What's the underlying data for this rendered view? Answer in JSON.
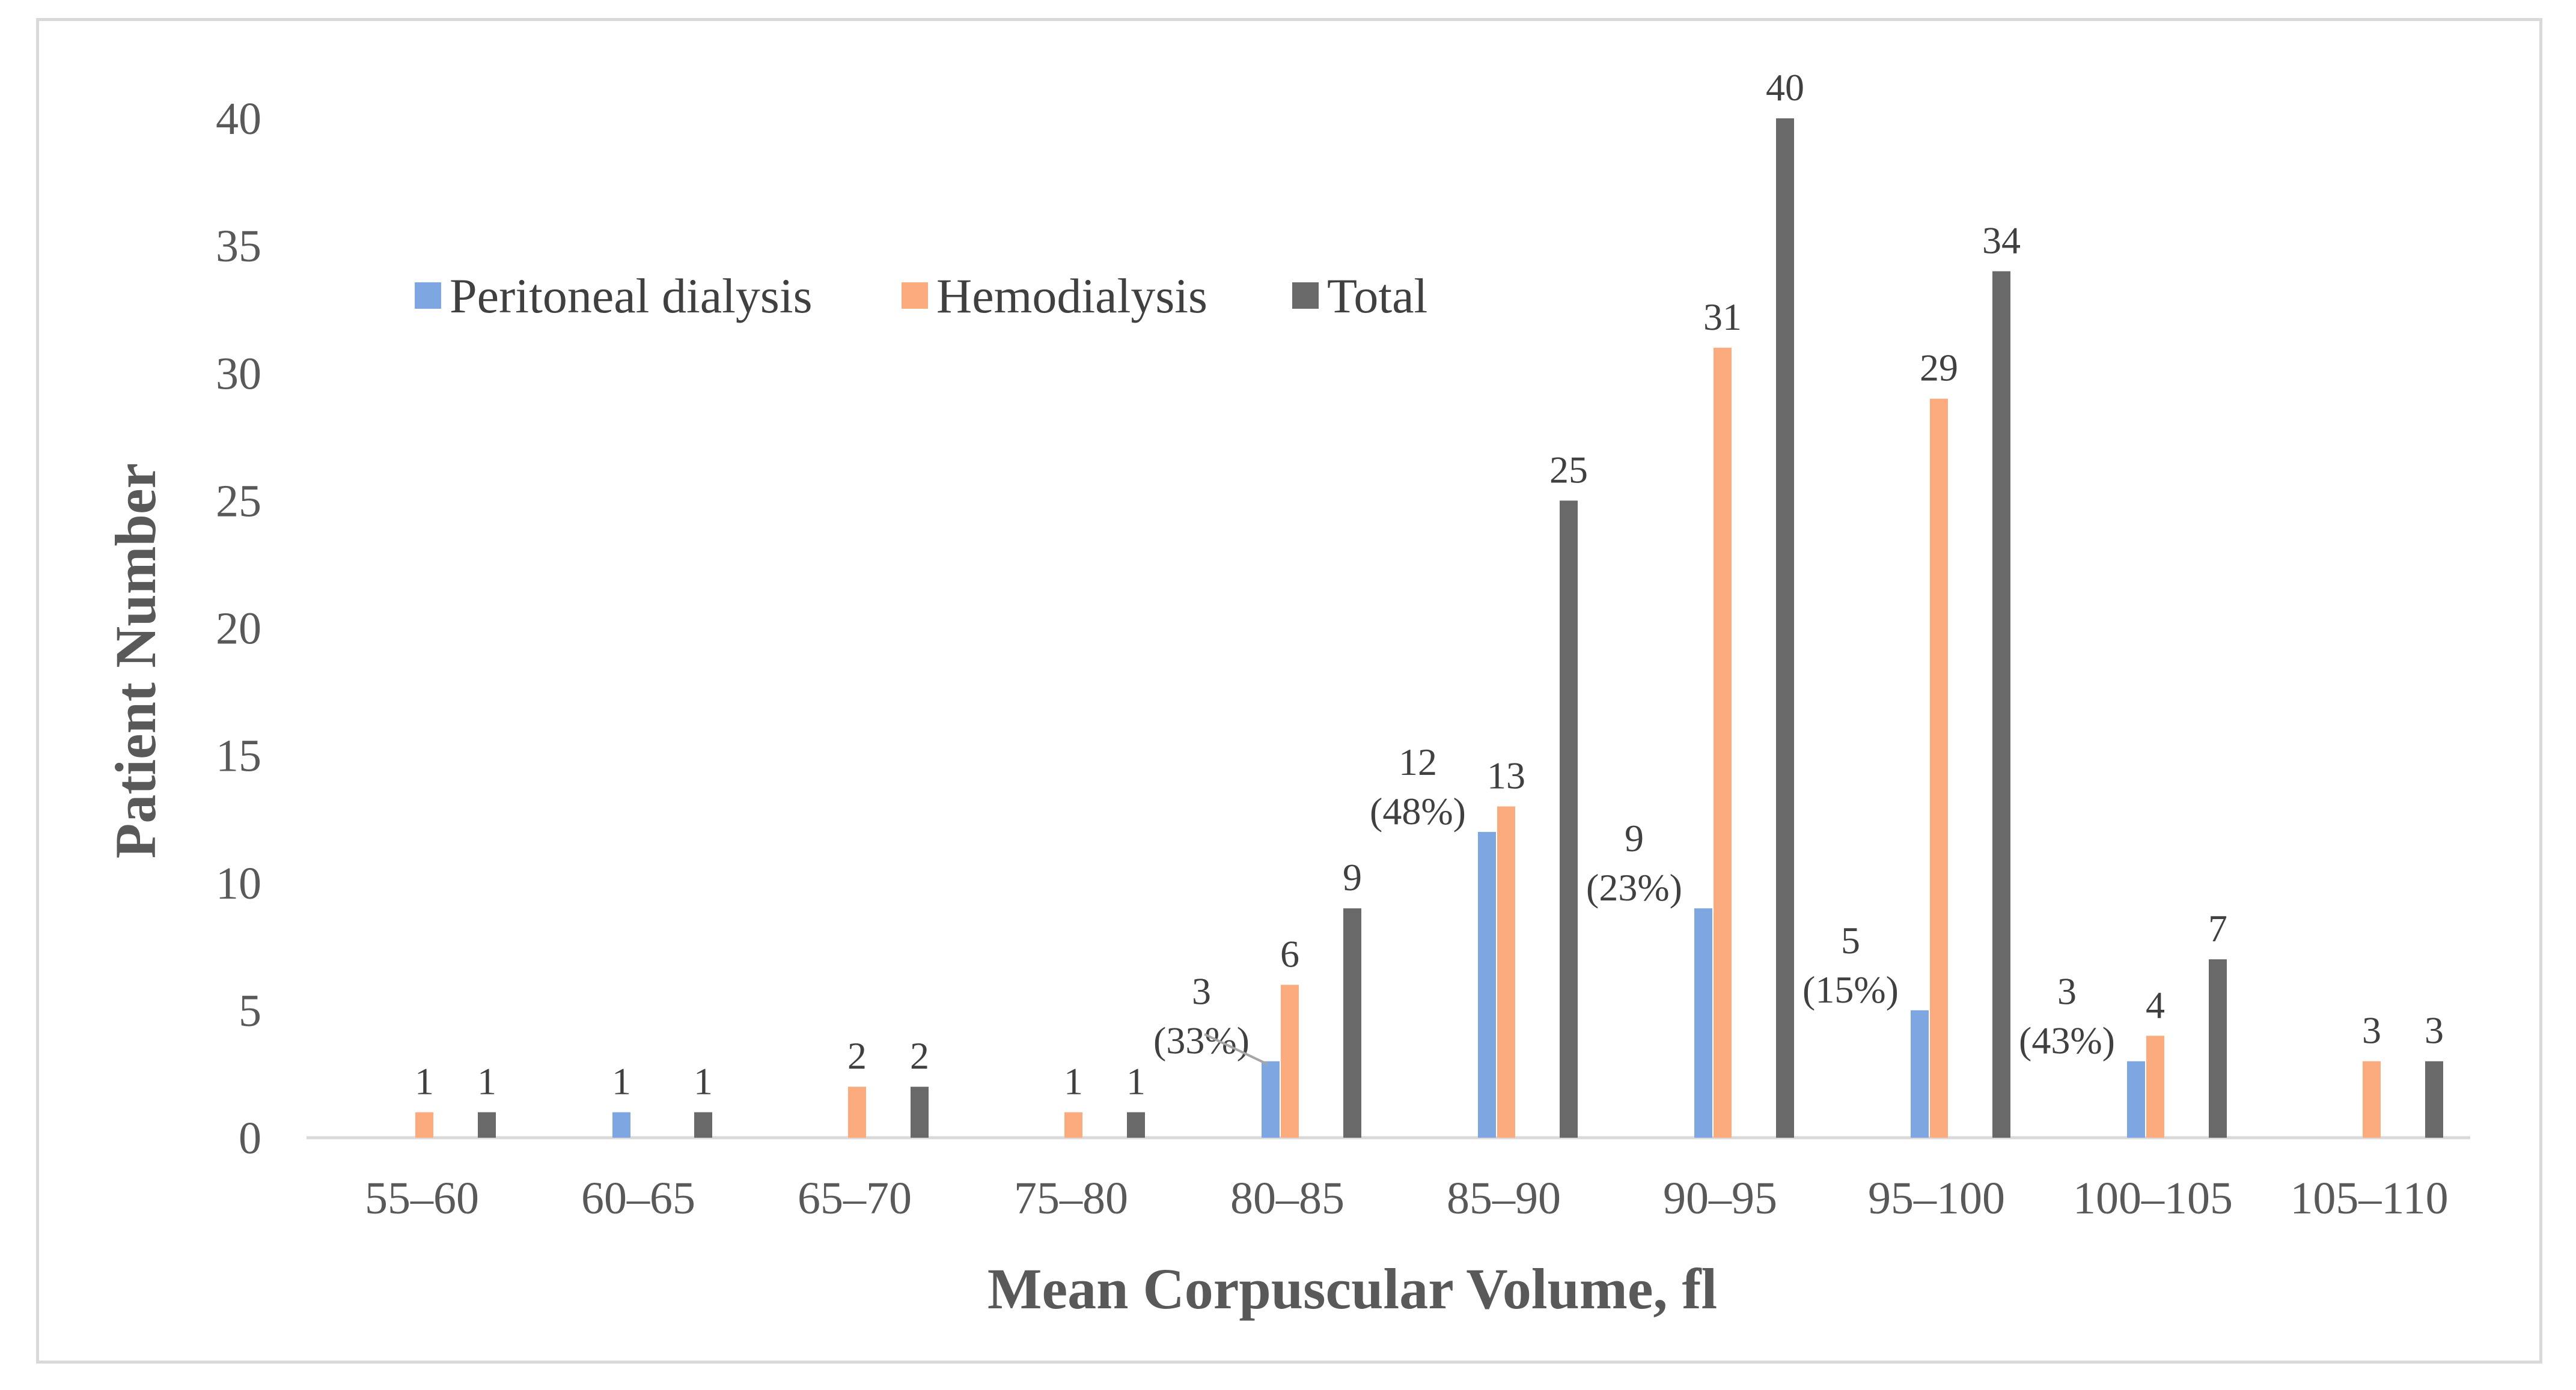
{
  "chart_data": {
    "type": "bar",
    "title": "",
    "xlabel": "Mean Corpuscular Volume, fl",
    "ylabel": "Patient Number",
    "ylim": [
      0,
      40
    ],
    "yticks": [
      "0",
      "5",
      "10",
      "15",
      "20",
      "25",
      "30",
      "35",
      "40"
    ],
    "categories": [
      "55–60",
      "60–65",
      "65–70",
      "75–80",
      "80–85",
      "85–90",
      "90–95",
      "95–100",
      "100–105",
      "105–110"
    ],
    "legend_position": "top-left",
    "series": [
      {
        "name": "Peritoneal dialysis",
        "color": "#7ea6e0",
        "values": [
          0,
          1,
          0,
          0,
          3,
          12,
          9,
          5,
          3,
          0
        ],
        "labels": [
          "",
          "1",
          "",
          "",
          "3",
          "12",
          "9",
          "5",
          "3",
          ""
        ],
        "percent_labels": [
          "",
          "",
          "",
          "",
          "(33%)",
          "(48%)",
          "(23%)",
          "(15%)",
          "(43%)",
          ""
        ]
      },
      {
        "name": "Hemodialysis",
        "color": "#fbab7e",
        "values": [
          1,
          0,
          2,
          1,
          6,
          13,
          31,
          29,
          4,
          3
        ],
        "labels": [
          "1",
          "",
          "2",
          "1",
          "6",
          "13",
          "31",
          "29",
          "4",
          "3"
        ]
      },
      {
        "name": "Total",
        "color": "#696969",
        "values": [
          1,
          1,
          2,
          1,
          9,
          25,
          40,
          34,
          7,
          3
        ],
        "labels": [
          "1",
          "1",
          "2",
          "1",
          "9",
          "25",
          "40",
          "34",
          "7",
          "3"
        ]
      }
    ]
  }
}
